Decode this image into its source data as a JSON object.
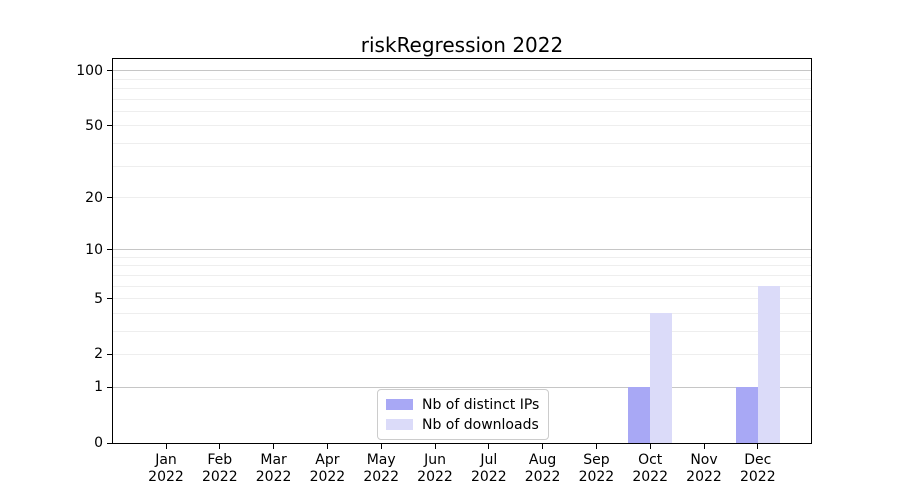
{
  "chart_data": {
    "type": "bar",
    "title": "riskRegression 2022",
    "year": "2022",
    "categories": [
      "Jan",
      "Feb",
      "Mar",
      "Apr",
      "May",
      "Jun",
      "Jul",
      "Aug",
      "Sep",
      "Oct",
      "Nov",
      "Dec"
    ],
    "series": [
      {
        "name": "Nb of distinct IPs",
        "color": "#a8a8f5",
        "values": [
          0,
          0,
          0,
          0,
          0,
          0,
          0,
          0,
          0,
          1,
          0,
          1
        ]
      },
      {
        "name": "Nb of downloads",
        "color": "#dbdbf9",
        "values": [
          0,
          0,
          0,
          0,
          0,
          0,
          0,
          0,
          0,
          4,
          0,
          6
        ]
      }
    ],
    "y_axis": {
      "scale": "log1p",
      "tick_labels": [
        0,
        1,
        2,
        5,
        10,
        20,
        50,
        100
      ],
      "major_gridlines": [
        1,
        10,
        100
      ],
      "minor_gridlines": [
        2,
        3,
        4,
        5,
        6,
        7,
        8,
        9,
        20,
        30,
        40,
        50,
        60,
        70,
        80,
        90
      ],
      "ylim": [
        0,
        116
      ]
    },
    "x_axis": {
      "grid": false
    },
    "legend": {
      "position": "lower center"
    }
  }
}
